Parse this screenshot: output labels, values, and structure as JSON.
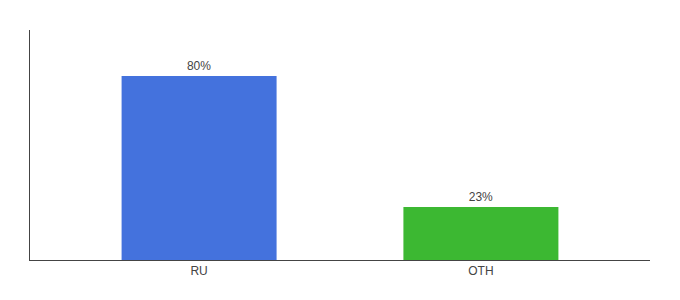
{
  "chart_data": {
    "type": "bar",
    "categories": [
      "RU",
      "OTH"
    ],
    "values": [
      80,
      23
    ],
    "value_labels": [
      "80%",
      "23%"
    ],
    "data_labels": true,
    "colors": [
      "#4472dd",
      "#3cb832"
    ],
    "ylim": [
      0,
      100
    ],
    "tick_labels": "x",
    "grid": false
  }
}
